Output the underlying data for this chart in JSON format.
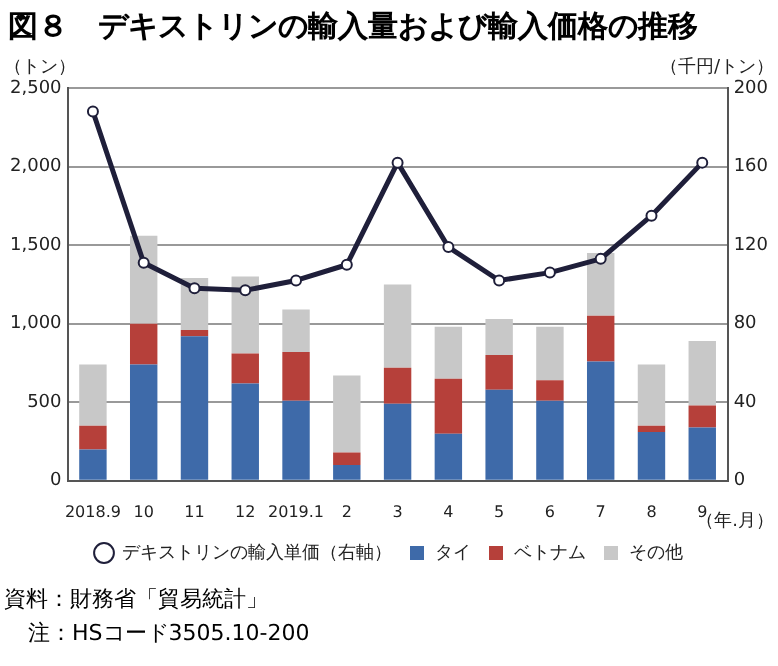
{
  "chart_data": {
    "type": "bar",
    "title": "図８　デキストリンの輸入量および輸入価格の推移",
    "ylabel": "（トン）",
    "y2label": "（千円/トン）",
    "xlabel": "（年.月）",
    "categories": [
      "2018.9",
      "10",
      "11",
      "12",
      "2019.1",
      "2",
      "3",
      "4",
      "5",
      "6",
      "7",
      "8",
      "9"
    ],
    "stacked": true,
    "series": [
      {
        "name": "タイ",
        "color": "#3e6aa9",
        "values": [
          200,
          740,
          920,
          620,
          510,
          100,
          490,
          300,
          580,
          510,
          760,
          310,
          340
        ]
      },
      {
        "name": "ベトナム",
        "color": "#b6403a",
        "values": [
          150,
          260,
          40,
          190,
          310,
          80,
          230,
          350,
          220,
          130,
          290,
          40,
          140
        ]
      },
      {
        "name": "その他",
        "color": "#c8c8c8",
        "values": [
          390,
          560,
          330,
          490,
          270,
          490,
          530,
          330,
          230,
          340,
          400,
          390,
          410
        ]
      },
      {
        "name": "デキストリンの輸入単価（右軸）",
        "type": "line",
        "axis": "y2",
        "color": "#1f1f3a",
        "marker": "circle",
        "line_style": "solid",
        "values": [
          188,
          111,
          98,
          97,
          102,
          110,
          162,
          119,
          102,
          106,
          113,
          135,
          162
        ]
      }
    ],
    "ylim": [
      0,
      2500
    ],
    "yticks": [
      {
        "value": 0,
        "label": "0"
      },
      {
        "value": 500,
        "label": "500"
      },
      {
        "value": 1000,
        "label": "1,000"
      },
      {
        "value": 1500,
        "label": "1,500"
      },
      {
        "value": 2000,
        "label": "2,000"
      },
      {
        "value": 2500,
        "label": "2,500"
      }
    ],
    "y2lim": [
      0,
      200
    ],
    "y2ticks": [
      0,
      40,
      80,
      120,
      160,
      200
    ],
    "grid": "y",
    "legend": "bottom",
    "annotations": [
      "資料：財務省「貿易統計」",
      "注：HSコード3505.10-200"
    ]
  }
}
